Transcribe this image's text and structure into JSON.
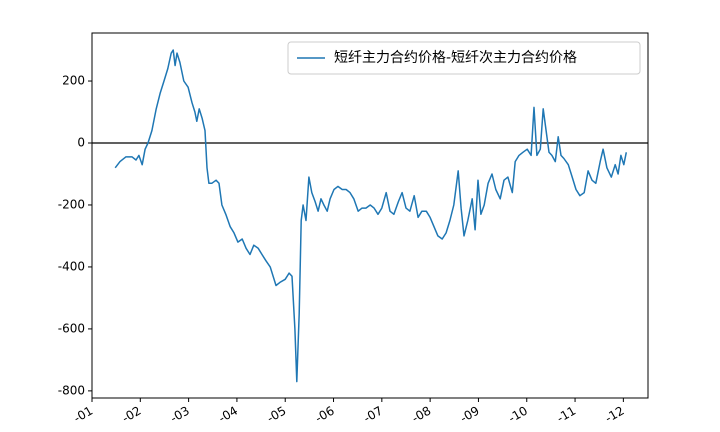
{
  "chart_data": {
    "type": "line",
    "series": [
      {
        "name": "短纤主力合约价格-短纤次主力合约价格",
        "color": "#1f77b4",
        "x": [
          1.48,
          1.58,
          1.7,
          1.83,
          1.91,
          1.97,
          2.04,
          2.1,
          2.16,
          2.24,
          2.33,
          2.41,
          2.49,
          2.57,
          2.64,
          2.68,
          2.72,
          2.76,
          2.82,
          2.9,
          2.99,
          3.07,
          3.13,
          3.17,
          3.22,
          3.28,
          3.34,
          3.38,
          3.42,
          3.48,
          3.57,
          3.63,
          3.69,
          3.77,
          3.86,
          3.94,
          4.02,
          4.11,
          4.19,
          4.27,
          4.35,
          4.44,
          4.52,
          4.6,
          4.69,
          4.75,
          4.81,
          4.89,
          5.0,
          5.08,
          5.14,
          5.2,
          5.24,
          5.29,
          5.33,
          5.37,
          5.43,
          5.49,
          5.55,
          5.62,
          5.68,
          5.74,
          5.8,
          5.87,
          5.93,
          6.01,
          6.09,
          6.18,
          6.26,
          6.34,
          6.42,
          6.51,
          6.59,
          6.67,
          6.76,
          6.84,
          6.92,
          7.0,
          7.09,
          7.17,
          7.25,
          7.34,
          7.42,
          7.5,
          7.58,
          7.67,
          7.75,
          7.83,
          7.92,
          8.0,
          8.08,
          8.16,
          8.25,
          8.33,
          8.41,
          8.49,
          8.58,
          8.64,
          8.7,
          8.78,
          8.87,
          8.93,
          8.99,
          9.05,
          9.12,
          9.2,
          9.28,
          9.36,
          9.45,
          9.53,
          9.61,
          9.7,
          9.76,
          9.84,
          9.92,
          10.01,
          10.09,
          10.15,
          10.21,
          10.28,
          10.34,
          10.4,
          10.46,
          10.52,
          10.59,
          10.65,
          10.71,
          10.77,
          10.86,
          10.94,
          11.02,
          11.1,
          11.19,
          11.27,
          11.35,
          11.43,
          11.52,
          11.58,
          11.66,
          11.75,
          11.83,
          11.89,
          11.95,
          12.01,
          12.06
        ],
        "values": [
          -80,
          -60,
          -45,
          -45,
          -55,
          -40,
          -70,
          -20,
          0,
          40,
          110,
          160,
          200,
          240,
          290,
          300,
          250,
          290,
          260,
          200,
          180,
          130,
          100,
          70,
          110,
          80,
          40,
          -80,
          -130,
          -130,
          -120,
          -130,
          -200,
          -230,
          -270,
          -290,
          -320,
          -310,
          -340,
          -360,
          -330,
          -340,
          -360,
          -380,
          -400,
          -430,
          -460,
          -450,
          -440,
          -420,
          -430,
          -600,
          -770,
          -550,
          -250,
          -200,
          -250,
          -110,
          -160,
          -190,
          -220,
          -180,
          -200,
          -220,
          -180,
          -150,
          -140,
          -150,
          -150,
          -160,
          -180,
          -220,
          -210,
          -210,
          -200,
          -210,
          -230,
          -210,
          -160,
          -220,
          -230,
          -190,
          -160,
          -210,
          -220,
          -170,
          -240,
          -220,
          -220,
          -240,
          -270,
          -300,
          -310,
          -290,
          -250,
          -200,
          -90,
          -210,
          -300,
          -250,
          -180,
          -280,
          -120,
          -230,
          -200,
          -130,
          -100,
          -150,
          -180,
          -120,
          -110,
          -160,
          -60,
          -40,
          -30,
          -20,
          -40,
          115,
          -40,
          -20,
          110,
          40,
          -30,
          -40,
          -60,
          20,
          -40,
          -50,
          -70,
          -110,
          -150,
          -170,
          -160,
          -90,
          -120,
          -130,
          -60,
          -20,
          -80,
          -110,
          -70,
          -100,
          -40,
          -70,
          -30
        ]
      }
    ],
    "hline": 0,
    "xlim": [
      1,
      12.51
    ],
    "xticks": [
      {
        "value": 1,
        "label": "-01"
      },
      {
        "value": 2,
        "label": "-02"
      },
      {
        "value": 3,
        "label": "-03"
      },
      {
        "value": 4,
        "label": "-04"
      },
      {
        "value": 5,
        "label": "-05"
      },
      {
        "value": 6,
        "label": "-06"
      },
      {
        "value": 7,
        "label": "-07"
      },
      {
        "value": 8,
        "label": "-08"
      },
      {
        "value": 9,
        "label": "-09"
      },
      {
        "value": 10,
        "label": "-10"
      },
      {
        "value": 11,
        "label": "-11"
      },
      {
        "value": 12,
        "label": "-12"
      }
    ],
    "ylim": [
      -823,
      355
    ],
    "yticks": [
      -800,
      -600,
      -400,
      -200,
      0,
      200
    ],
    "legend": "upper right"
  }
}
